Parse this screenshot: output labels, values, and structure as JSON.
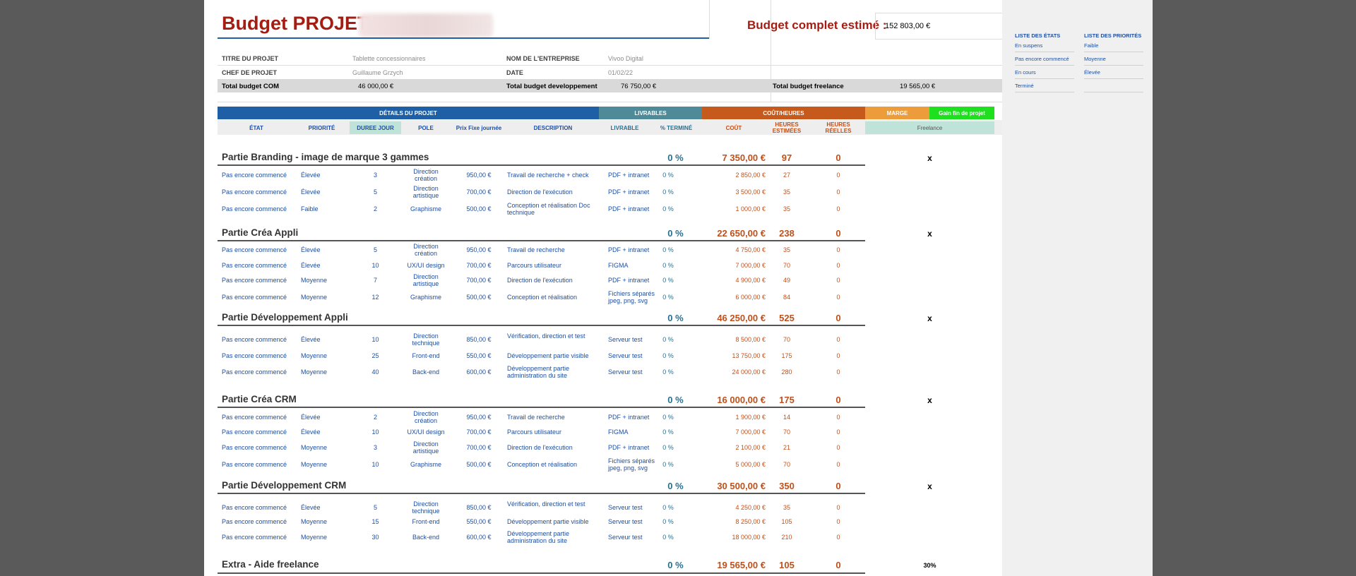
{
  "header": {
    "title": "Budget PROJET",
    "budget_label": "Budget complet estimé :",
    "budget_value": "152 803,00 €"
  },
  "info": {
    "titre_label": "TITRE DU PROJET",
    "titre_value": "Tablette concessionnaires",
    "entreprise_label": "NOM DE L'ENTREPRISE",
    "entreprise_value": "Vivoo Digital",
    "chef_label": "CHEF DE PROJET",
    "chef_value": "Guillaume Grzych",
    "date_label": "DATE",
    "date_value": "01/02/22",
    "total_com_label": "Total budget COM",
    "total_com_value": "46 000,00 €",
    "total_dev_label": "Total budget developpement",
    "total_dev_value": "76 750,00 €",
    "total_free_label": "Total budget freelance",
    "total_free_value": "19 565,00 €"
  },
  "table_headers": {
    "details": "DÉTAILS DU PROJET",
    "livrables": "LIVRABLES",
    "cout_heures": "COÛT/HEURES",
    "marge": "MARGE",
    "gain": "Gain fin de projet",
    "etat": "ÉTAT",
    "priorite": "PRIORITÉ",
    "duree": "DUREE JOUR",
    "pole": "POLE",
    "prix": "Prix Fixe journée",
    "description": "DESCRIPTION",
    "livrable": "LIVRABLE",
    "termine": "% TERMINÉ",
    "cout": "COÛT",
    "heures_est": "HEURES ESTIMÉES",
    "heures_reel": "HEURES RÉELLES",
    "freelance": "Freelance"
  },
  "colors": {
    "blue": "#1f5fa6",
    "teal": "#4e8a98",
    "orange": "#c55a1c",
    "light_orange": "#ed9c3c",
    "green": "#1fe01f",
    "title_red": "#a51d12"
  },
  "sections": [
    {
      "title": "Partie Branding - image de marque 3 gammes",
      "pct": "0 %",
      "cost": "7 350,00 €",
      "hours": "97",
      "real": "0",
      "mark": "x",
      "rows": [
        {
          "etat": "Pas encore commencé",
          "prio": "Élevée",
          "duree": "3",
          "pole": "Direction création",
          "prix": "950,00 €",
          "desc": "Travail de recherche + check",
          "livrable": "PDF + intranet",
          "pct": "0 %",
          "cout": "2 850,00 €",
          "hest": "27",
          "hreel": "0"
        },
        {
          "etat": "Pas encore commencé",
          "prio": "Élevée",
          "duree": "5",
          "pole": "Direction artistique",
          "prix": "700,00 €",
          "desc": "Direction de l'exécution",
          "livrable": "PDF + intranet",
          "pct": "0 %",
          "cout": "3 500,00 €",
          "hest": "35",
          "hreel": "0"
        },
        {
          "etat": "Pas encore commencé",
          "prio": "Faible",
          "duree": "2",
          "pole": "Graphisme",
          "prix": "500,00 €",
          "desc": "Conception et réalisation Doc technique",
          "livrable": "PDF + intranet",
          "pct": "0 %",
          "cout": "1 000,00 €",
          "hest": "35",
          "hreel": "0"
        }
      ]
    },
    {
      "title": "Partie Créa Appli",
      "pct": "0 %",
      "cost": "22 650,00 €",
      "hours": "238",
      "real": "0",
      "mark": "x",
      "rows": [
        {
          "etat": "Pas encore commencé",
          "prio": "Élevée",
          "duree": "5",
          "pole": "Direction création",
          "prix": "950,00 €",
          "desc": "Travail de recherche",
          "livrable": "PDF + intranet",
          "pct": "0 %",
          "cout": "4 750,00 €",
          "hest": "35",
          "hreel": "0"
        },
        {
          "etat": "Pas encore commencé",
          "prio": "Élevée",
          "duree": "10",
          "pole": "UX/UI design",
          "prix": "700,00 €",
          "desc": "Parcours utilisateur",
          "livrable": "FIGMA",
          "pct": "0 %",
          "cout": "7 000,00 €",
          "hest": "70",
          "hreel": "0"
        },
        {
          "etat": "Pas encore commencé",
          "prio": "Moyenne",
          "duree": "7",
          "pole": "Direction artistique",
          "prix": "700,00 €",
          "desc": "Direction de l'exécution",
          "livrable": "PDF + intranet",
          "pct": "0 %",
          "cout": "4 900,00 €",
          "hest": "49",
          "hreel": "0"
        },
        {
          "etat": "Pas encore commencé",
          "prio": "Moyenne",
          "duree": "12",
          "pole": "Graphisme",
          "prix": "500,00 €",
          "desc": "Conception et réalisation",
          "livrable": "Fichiers séparés jpeg, png, svg",
          "pct": "0 %",
          "cout": "6 000,00 €",
          "hest": "84",
          "hreel": "0"
        }
      ]
    },
    {
      "title": "Partie Développement Appli",
      "pct": "0 %",
      "cost": "46 250,00 €",
      "hours": "525",
      "real": "0",
      "mark": "x",
      "rows": [
        {
          "etat": "Pas encore commencé",
          "prio": "Élevée",
          "duree": "10",
          "pole": "Direction technique",
          "prix": "850,00 €",
          "desc": "Vérification, direction et test",
          "livrable": "Serveur test",
          "pct": "0 %",
          "cout": "8 500,00 €",
          "hest": "70",
          "hreel": "0"
        },
        {
          "etat": "Pas encore commencé",
          "prio": "Moyenne",
          "duree": "25",
          "pole": "Front-end",
          "prix": "550,00 €",
          "desc": "Développement partie visible",
          "livrable": "Serveur test",
          "pct": "0 %",
          "cout": "13 750,00 €",
          "hest": "175",
          "hreel": "0"
        },
        {
          "etat": "Pas encore commencé",
          "prio": "Moyenne",
          "duree": "40",
          "pole": "Back-end",
          "prix": "600,00 €",
          "desc": "Développement partie administration du site",
          "livrable": "Serveur test",
          "pct": "0 %",
          "cout": "24 000,00 €",
          "hest": "280",
          "hreel": "0"
        }
      ]
    },
    {
      "title": "Partie Créa CRM",
      "pct": "0 %",
      "cost": "16 000,00 €",
      "hours": "175",
      "real": "0",
      "mark": "x",
      "rows": [
        {
          "etat": "Pas encore commencé",
          "prio": "Élevée",
          "duree": "2",
          "pole": "Direction création",
          "prix": "950,00 €",
          "desc": "Travail de recherche",
          "livrable": "PDF + intranet",
          "pct": "0 %",
          "cout": "1 900,00 €",
          "hest": "14",
          "hreel": "0"
        },
        {
          "etat": "Pas encore commencé",
          "prio": "Élevée",
          "duree": "10",
          "pole": "UX/UI design",
          "prix": "700,00 €",
          "desc": "Parcours utilisateur",
          "livrable": "FIGMA",
          "pct": "0 %",
          "cout": "7 000,00 €",
          "hest": "70",
          "hreel": "0"
        },
        {
          "etat": "Pas encore commencé",
          "prio": "Moyenne",
          "duree": "3",
          "pole": "Direction artistique",
          "prix": "700,00 €",
          "desc": "Direction de l'exécution",
          "livrable": "PDF + intranet",
          "pct": "0 %",
          "cout": "2 100,00 €",
          "hest": "21",
          "hreel": "0"
        },
        {
          "etat": "Pas encore commencé",
          "prio": "Moyenne",
          "duree": "10",
          "pole": "Graphisme",
          "prix": "500,00 €",
          "desc": "Conception et réalisation",
          "livrable": "Fichiers séparés jpeg, png, svg",
          "pct": "0 %",
          "cout": "5 000,00 €",
          "hest": "70",
          "hreel": "0"
        }
      ]
    },
    {
      "title": "Partie Développement CRM",
      "pct": "0 %",
      "cost": "30 500,00 €",
      "hours": "350",
      "real": "0",
      "mark": "x",
      "rows": [
        {
          "etat": "Pas encore commencé",
          "prio": "Élevée",
          "duree": "5",
          "pole": "Direction technique",
          "prix": "850,00 €",
          "desc": "Vérification, direction et test",
          "livrable": "Serveur test",
          "pct": "0 %",
          "cout": "4 250,00 €",
          "hest": "35",
          "hreel": "0"
        },
        {
          "etat": "Pas encore commencé",
          "prio": "Moyenne",
          "duree": "15",
          "pole": "Front-end",
          "prix": "550,00 €",
          "desc": "Développement partie visible",
          "livrable": "Serveur test",
          "pct": "0 %",
          "cout": "8 250,00 €",
          "hest": "105",
          "hreel": "0"
        },
        {
          "etat": "Pas encore commencé",
          "prio": "Moyenne",
          "duree": "30",
          "pole": "Back-end",
          "prix": "600,00 €",
          "desc": "Développement partie administration du site",
          "livrable": "Serveur test",
          "pct": "0 %",
          "cout": "18 000,00 €",
          "hest": "210",
          "hreel": "0"
        }
      ]
    },
    {
      "title": "Extra - Aide freelance",
      "pct": "0 %",
      "cost": "19 565,00 €",
      "hours": "105",
      "real": "0",
      "mark": "30%",
      "rows": []
    }
  ],
  "side_lists": {
    "etats_title": "LISTE DES ÉTATS",
    "etats": [
      "En suspens",
      "Pas encore commencé",
      "En cours",
      "Terminé"
    ],
    "prios_title": "LISTE DES PRIORITÉS",
    "prios": [
      "Faible",
      "Moyenne",
      "Élevée"
    ]
  }
}
